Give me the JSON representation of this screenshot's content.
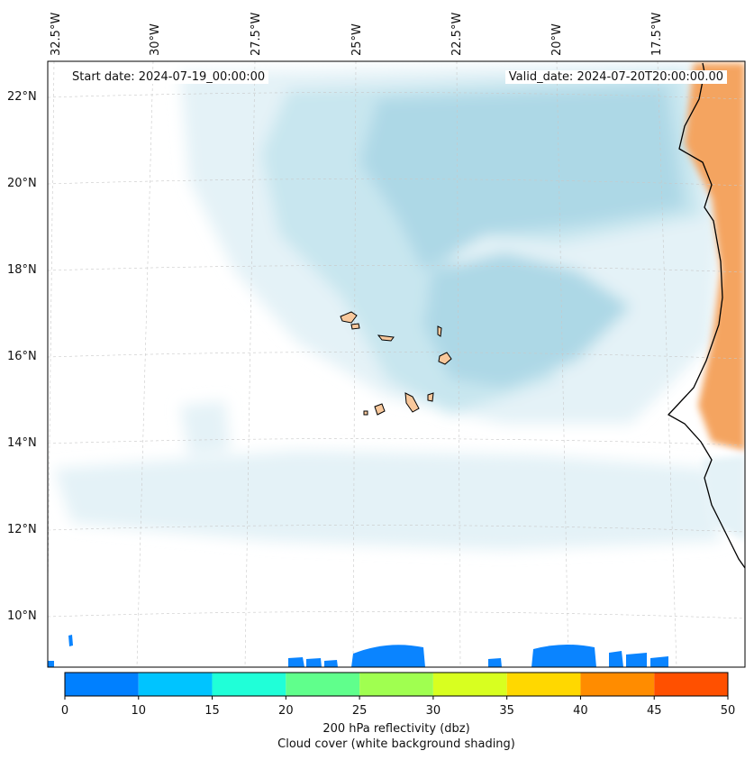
{
  "header": {
    "start_date": "Start date: 2024-07-19_00:00:00",
    "valid_date": "Valid_date: 2024-07-20T20:00:00.00"
  },
  "axes": {
    "longitude_labels": [
      "32.5°W",
      "30°W",
      "27.5°W",
      "25°W",
      "22.5°W",
      "20°W",
      "17.5°W"
    ],
    "latitude_labels": [
      "22°N",
      "20°N",
      "18°N",
      "16°N",
      "14°N",
      "12°N",
      "10°N"
    ]
  },
  "colorbar": {
    "ticks": [
      "0",
      "10",
      "15",
      "20",
      "25",
      "30",
      "35",
      "40",
      "45",
      "50"
    ],
    "colors": [
      "#0080ff",
      "#00c4ff",
      "#20ffd8",
      "#60ff8c",
      "#a0ff50",
      "#d8ff20",
      "#ffd800",
      "#ff8c00",
      "#ff5000"
    ],
    "label_line1": "200 hPa reflectivity (dbz)",
    "label_line2": "Cloud cover (white background shading)"
  },
  "map_colors": {
    "cloud_light": "#e4f2f7",
    "cloud_mid": "#c8e6ef",
    "cloud_dense": "#add8e6",
    "land_heat": "#f4a460",
    "reflectivity": "#0a84ff",
    "island_fill": "#f8c89c",
    "coastline": "#000000",
    "gridline": "#c8c8c8"
  }
}
